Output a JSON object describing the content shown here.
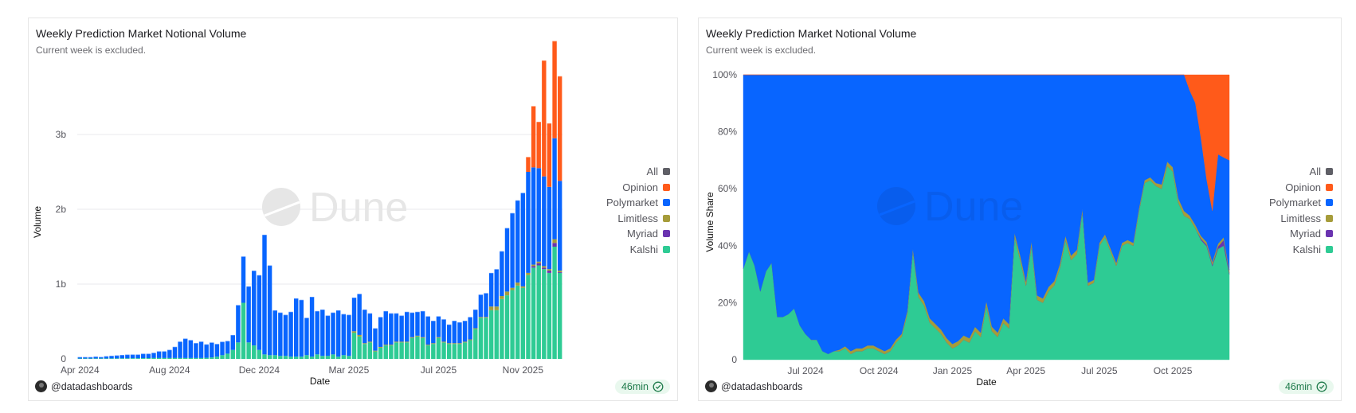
{
  "panels": [
    {
      "title": "Weekly Prediction Market Notional Volume",
      "subtitle": "Current week is excluded.",
      "author": "@datadashboards",
      "refresh_badge": "46min",
      "watermark": "Dune"
    },
    {
      "title": "Weekly Prediction Market Notional Volume",
      "subtitle": "Current week is excluded.",
      "author": "@datadashboards",
      "refresh_badge": "46min",
      "watermark": "Dune"
    }
  ],
  "legend": [
    {
      "label": "All",
      "color": "#5f5f66"
    },
    {
      "label": "Opinion",
      "color": "#ff5a1a"
    },
    {
      "label": "Polymarket",
      "color": "#0865ff"
    },
    {
      "label": "Limitless",
      "color": "#a69c3a"
    },
    {
      "label": "Myriad",
      "color": "#6a33b0"
    },
    {
      "label": "Kalshi",
      "color": "#2ecb94"
    }
  ],
  "chart_data": [
    {
      "type": "bar",
      "stacked": true,
      "title": "Weekly Prediction Market Notional Volume",
      "subtitle": "Current week is excluded.",
      "xlabel": "Date",
      "ylabel": "Volume",
      "ylim": [
        0,
        3.8
      ],
      "y_ticks": [
        {
          "v": 0,
          "label": "0"
        },
        {
          "v": 1,
          "label": "1b"
        },
        {
          "v": 2,
          "label": "2b"
        },
        {
          "v": 3,
          "label": "3b"
        }
      ],
      "x_ticks": [
        {
          "index": 0,
          "label": "Apr 2024"
        },
        {
          "index": 17,
          "label": "Aug 2024"
        },
        {
          "index": 34,
          "label": "Dec 2024"
        },
        {
          "index": 51,
          "label": "Mar 2025"
        },
        {
          "index": 68,
          "label": "Jul 2025"
        },
        {
          "index": 84,
          "label": "Nov 2025"
        }
      ],
      "units": "billions USD",
      "grid": true,
      "legend_position": "right",
      "series": [
        {
          "name": "Kalshi",
          "color": "#2ecb94",
          "values": [
            0.005,
            0.005,
            0.005,
            0.006,
            0.006,
            0.006,
            0.007,
            0.007,
            0.008,
            0.008,
            0.009,
            0.009,
            0.01,
            0.01,
            0.012,
            0.012,
            0.012,
            0.012,
            0.012,
            0.012,
            0.012,
            0.012,
            0.012,
            0.012,
            0.015,
            0.02,
            0.03,
            0.05,
            0.07,
            0.12,
            0.22,
            0.75,
            0.22,
            0.18,
            0.12,
            0.06,
            0.05,
            0.05,
            0.04,
            0.04,
            0.03,
            0.03,
            0.03,
            0.05,
            0.03,
            0.06,
            0.04,
            0.04,
            0.06,
            0.03,
            0.05,
            0.04,
            0.35,
            0.3,
            0.2,
            0.22,
            0.1,
            0.15,
            0.18,
            0.18,
            0.22,
            0.22,
            0.22,
            0.28,
            0.3,
            0.28,
            0.18,
            0.2,
            0.28,
            0.22,
            0.2,
            0.2,
            0.2,
            0.22,
            0.25,
            0.4,
            0.55,
            0.55,
            0.65,
            0.65,
            0.8,
            0.85,
            0.92,
            0.98,
            0.95,
            1.12,
            1.22,
            1.25,
            1.2,
            1.15,
            1.5,
            1.15
          ]
        },
        {
          "name": "Myriad",
          "color": "#6a33b0",
          "values": [
            0,
            0,
            0,
            0,
            0,
            0,
            0,
            0,
            0,
            0,
            0,
            0,
            0,
            0,
            0,
            0,
            0,
            0,
            0,
            0,
            0,
            0,
            0,
            0,
            0,
            0,
            0,
            0,
            0,
            0,
            0,
            0,
            0,
            0,
            0,
            0,
            0,
            0,
            0,
            0,
            0,
            0,
            0,
            0,
            0,
            0,
            0,
            0,
            0,
            0,
            0,
            0,
            0,
            0,
            0,
            0,
            0,
            0,
            0,
            0,
            0,
            0,
            0,
            0,
            0,
            0,
            0,
            0,
            0,
            0,
            0,
            0,
            0,
            0,
            0,
            0,
            0,
            0,
            0,
            0,
            0,
            0,
            0,
            0,
            0,
            0,
            0.02,
            0.03,
            0.02,
            0.03,
            0.05,
            0.01
          ]
        },
        {
          "name": "Limitless",
          "color": "#a69c3a",
          "values": [
            0,
            0,
            0,
            0,
            0,
            0,
            0,
            0,
            0,
            0,
            0,
            0,
            0,
            0,
            0,
            0,
            0,
            0,
            0,
            0,
            0,
            0,
            0,
            0,
            0,
            0,
            0,
            0,
            0,
            0,
            0,
            0,
            0,
            0,
            0,
            0,
            0,
            0,
            0,
            0,
            0,
            0,
            0,
            0,
            0,
            0,
            0,
            0,
            0,
            0,
            0,
            0,
            0.02,
            0.02,
            0.01,
            0.01,
            0.01,
            0.01,
            0.01,
            0.01,
            0.01,
            0.01,
            0.01,
            0.01,
            0.01,
            0.01,
            0.01,
            0.01,
            0.01,
            0.01,
            0.01,
            0.01,
            0.01,
            0.01,
            0.01,
            0.01,
            0.01,
            0.01,
            0.05,
            0.05,
            0.04,
            0.05,
            0.03,
            0.04,
            0.02,
            0.03,
            0.02,
            0.02,
            0.02,
            0.02,
            0.05,
            0.02
          ]
        },
        {
          "name": "Polymarket",
          "color": "#0865ff",
          "values": [
            0.02,
            0.02,
            0.02,
            0.025,
            0.02,
            0.03,
            0.035,
            0.04,
            0.045,
            0.05,
            0.05,
            0.05,
            0.06,
            0.06,
            0.07,
            0.09,
            0.09,
            0.11,
            0.15,
            0.22,
            0.26,
            0.24,
            0.2,
            0.22,
            0.18,
            0.2,
            0.17,
            0.18,
            0.17,
            0.2,
            0.5,
            0.62,
            0.75,
            1.0,
            1.0,
            1.6,
            1.2,
            0.6,
            0.58,
            0.55,
            0.6,
            0.78,
            0.76,
            0.5,
            0.8,
            0.58,
            0.62,
            0.54,
            0.56,
            0.62,
            0.55,
            0.55,
            0.45,
            0.55,
            0.45,
            0.38,
            0.3,
            0.4,
            0.45,
            0.42,
            0.38,
            0.35,
            0.4,
            0.33,
            0.32,
            0.35,
            0.38,
            0.3,
            0.28,
            0.3,
            0.25,
            0.3,
            0.28,
            0.28,
            0.3,
            0.25,
            0.3,
            0.32,
            0.45,
            0.5,
            0.6,
            0.85,
            1.0,
            1.1,
            1.25,
            1.35,
            1.3,
            1.25,
            1.2,
            1.1,
            1.35,
            1.2
          ]
        },
        {
          "name": "Opinion",
          "color": "#ff5a1a",
          "values": [
            0,
            0,
            0,
            0,
            0,
            0,
            0,
            0,
            0,
            0,
            0,
            0,
            0,
            0,
            0,
            0,
            0,
            0,
            0,
            0,
            0,
            0,
            0,
            0,
            0,
            0,
            0,
            0,
            0,
            0,
            0,
            0,
            0,
            0,
            0,
            0,
            0,
            0,
            0,
            0,
            0,
            0,
            0,
            0,
            0,
            0,
            0,
            0,
            0,
            0,
            0,
            0,
            0,
            0,
            0,
            0,
            0,
            0,
            0,
            0,
            0,
            0,
            0,
            0,
            0,
            0,
            0,
            0,
            0,
            0,
            0,
            0,
            0,
            0,
            0,
            0,
            0,
            0,
            0,
            0,
            0,
            0,
            0,
            0,
            0,
            0.2,
            0.82,
            0.62,
            1.55,
            0.85,
            1.3,
            1.4
          ]
        }
      ]
    },
    {
      "type": "area",
      "stacked": true,
      "normalized": true,
      "title": "Weekly Prediction Market Notional Volume",
      "subtitle": "Current week is excluded.",
      "xlabel": "Date",
      "ylabel": "Volume Share",
      "ylim": [
        0,
        100
      ],
      "y_ticks": [
        {
          "v": 0,
          "label": "0"
        },
        {
          "v": 20,
          "label": "20%"
        },
        {
          "v": 40,
          "label": "40%"
        },
        {
          "v": 60,
          "label": "60%"
        },
        {
          "v": 80,
          "label": "80%"
        },
        {
          "v": 100,
          "label": "100%"
        }
      ],
      "x_ticks": [
        {
          "index": 11,
          "label": "Jul 2024"
        },
        {
          "index": 24,
          "label": "Oct 2024"
        },
        {
          "index": 37,
          "label": "Jan 2025"
        },
        {
          "index": 50,
          "label": "Apr 2025"
        },
        {
          "index": 63,
          "label": "Jul 2025"
        },
        {
          "index": 76,
          "label": "Oct 2025"
        }
      ],
      "grid": false,
      "legend_position": "right",
      "series": [
        {
          "name": "Kalshi",
          "color": "#2ecb94",
          "values": [
            32,
            38,
            33,
            24,
            31,
            34,
            15,
            15,
            16,
            18,
            12,
            9,
            7,
            7,
            3,
            2,
            3,
            3,
            4,
            2,
            3,
            3,
            4,
            4,
            3,
            2,
            3,
            6,
            8,
            16,
            38,
            22,
            19,
            13,
            11,
            9,
            6,
            4,
            5,
            7,
            6,
            10,
            8,
            19,
            10,
            8,
            13,
            11,
            43,
            35,
            26,
            40,
            21,
            20,
            24,
            26,
            32,
            42,
            35,
            37,
            52,
            26,
            27,
            40,
            43,
            38,
            33,
            40,
            41,
            40,
            52,
            62,
            63,
            61,
            60,
            68,
            66,
            55,
            47,
            45,
            42,
            43,
            40,
            33,
            39,
            40,
            30
          ]
        },
        {
          "name": "Myriad",
          "color": "#6a33b0",
          "values": [
            0,
            0,
            0,
            0,
            0,
            0,
            0,
            0,
            0,
            0,
            0,
            0,
            0,
            0,
            0,
            0,
            0,
            0,
            0,
            0,
            0,
            0,
            0,
            0,
            0,
            0,
            0,
            0,
            0,
            0,
            0,
            0,
            0,
            0,
            0,
            0,
            0,
            0,
            0,
            0,
            0,
            0,
            0,
            0,
            0,
            0,
            0,
            0,
            0,
            0,
            0,
            0,
            0,
            0,
            0,
            0,
            0,
            0,
            0,
            0,
            0,
            0,
            0,
            0,
            0,
            0,
            0,
            0,
            0,
            0,
            0,
            0,
            0,
            0,
            0,
            0,
            0,
            0,
            0,
            0,
            0,
            0.5,
            0.5,
            0.5,
            0.8,
            2,
            0.5
          ]
        },
        {
          "name": "Limitless",
          "color": "#a69c3a",
          "values": [
            0,
            0,
            0,
            0,
            0,
            0,
            0,
            0,
            0,
            0,
            0,
            0,
            0,
            0,
            0,
            0,
            0,
            0.5,
            0.7,
            1,
            1,
            1,
            1,
            1,
            1,
            1,
            1,
            1,
            1,
            1,
            1,
            1.5,
            1.5,
            1.5,
            1.5,
            1.5,
            1.5,
            1.5,
            1.5,
            1.5,
            1.5,
            1.5,
            1.5,
            1.5,
            1.5,
            1.5,
            1.5,
            1.5,
            1.5,
            1.5,
            1.5,
            1.5,
            1.5,
            1.5,
            1.5,
            1.5,
            1.5,
            1.5,
            1.5,
            1.5,
            1,
            1,
            1,
            1,
            1,
            1,
            1,
            1,
            1,
            1,
            1,
            1,
            1,
            1,
            1.5,
            1.5,
            1.5,
            1.5,
            1.5,
            1,
            1,
            1,
            1,
            1,
            1,
            1,
            1
          ]
        },
        {
          "name": "Polymarket",
          "color": "#0865ff",
          "values": [
            68,
            62,
            67,
            76,
            69,
            66,
            85,
            85,
            84,
            82,
            88,
            91,
            93,
            93,
            97,
            98,
            97,
            96.5,
            95.3,
            97,
            96,
            96,
            95,
            95,
            96,
            97,
            96,
            93,
            91,
            83,
            61,
            76.5,
            79.5,
            85.5,
            87.5,
            89.5,
            92.5,
            94.5,
            93.5,
            91.5,
            92.5,
            88.5,
            90.5,
            79.5,
            88.5,
            90.5,
            85.5,
            87.5,
            55.5,
            63.5,
            72.5,
            58.5,
            77.5,
            78.5,
            74.5,
            72.5,
            66.5,
            56.5,
            63.5,
            61.5,
            47,
            73,
            72,
            59,
            56,
            61,
            66,
            59,
            58,
            59,
            47,
            37,
            36,
            38,
            38.5,
            30.5,
            32.5,
            43.5,
            44.5,
            40,
            39,
            35,
            22,
            18,
            31.5,
            28,
            38.5
          ]
        },
        {
          "name": "Opinion",
          "color": "#ff5a1a",
          "values": [
            0,
            0,
            0,
            0,
            0,
            0,
            0,
            0,
            0,
            0,
            0,
            0,
            0,
            0,
            0,
            0,
            0,
            0,
            0,
            0,
            0,
            0,
            0,
            0,
            0,
            0,
            0,
            0,
            0,
            0,
            0,
            0,
            0,
            0,
            0,
            0,
            0,
            0,
            0,
            0,
            0,
            0,
            0,
            0,
            0,
            0,
            0,
            0,
            0,
            0,
            0,
            0,
            0,
            0,
            0,
            0,
            0,
            0,
            0,
            0,
            0,
            0,
            0,
            0,
            0,
            0,
            0,
            0,
            0,
            0,
            0,
            0,
            0,
            0,
            0,
            0,
            0,
            0,
            0,
            5,
            9,
            23,
            37,
            48,
            28,
            29,
            30
          ]
        }
      ]
    }
  ]
}
